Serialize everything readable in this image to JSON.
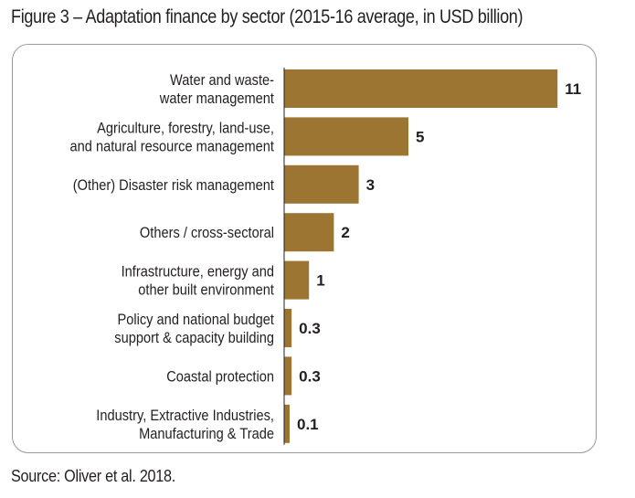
{
  "figure": {
    "title": "Figure 3 – Adaptation finance by sector (2015-16 average, in USD billion)",
    "source": "Source: Oliver et al. 2018."
  },
  "chart_data": {
    "type": "bar",
    "orientation": "horizontal",
    "title": "Figure 3 – Adaptation finance by sector (2015-16 average, in USD billion)",
    "xlabel": "",
    "ylabel": "",
    "grid": false,
    "categories": [
      [
        "Water and waste-",
        "water management"
      ],
      [
        "Agriculture, forestry, land-use,",
        "and natural resource management"
      ],
      [
        "(Other) Disaster risk management"
      ],
      [
        "Others / cross-sectoral"
      ],
      [
        "Infrastructure, energy and",
        "other built environment"
      ],
      [
        "Policy and national budget",
        "support & capacity building"
      ],
      [
        "Coastal protection"
      ],
      [
        "Industry, Extractive Industries,",
        "Manufacturing & Trade"
      ]
    ],
    "values": [
      11,
      5,
      3,
      2,
      1,
      0.3,
      0.3,
      0.1
    ],
    "value_labels": [
      "11",
      "5",
      "3",
      "2",
      "1",
      "0.3",
      "0.3",
      "0.1"
    ],
    "bar_color": "#9c7533"
  }
}
